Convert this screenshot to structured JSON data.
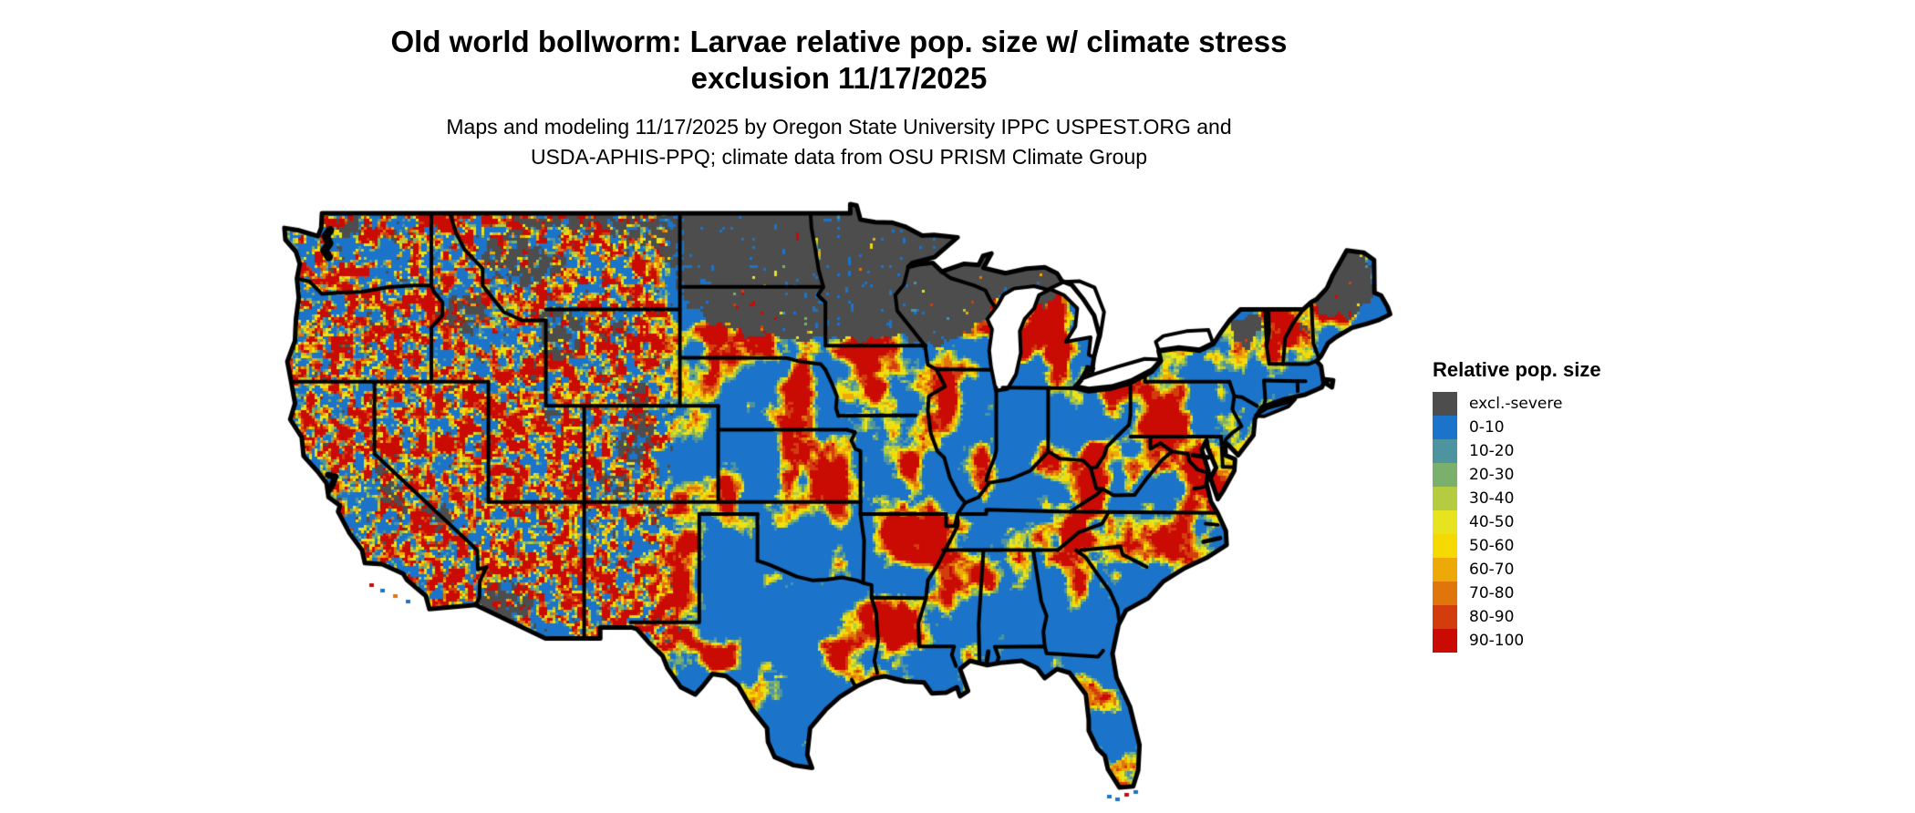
{
  "header": {
    "title_line1": "Old world bollworm: Larvae relative pop. size w/ climate stress",
    "title_line2": "exclusion 11/17/2025",
    "subtitle_line1": "Maps and modeling 11/17/2025 by Oregon State University IPPC USPEST.ORG and",
    "subtitle_line2": "USDA-APHIS-PPQ; climate data from OSU PRISM Climate Group"
  },
  "legend": {
    "title": "Relative pop. size",
    "items": [
      {
        "label": "excl.-severe",
        "color": "#4d4d4d"
      },
      {
        "label": "0-10",
        "color": "#1b74c9"
      },
      {
        "label": "10-20",
        "color": "#4e93a0"
      },
      {
        "label": "20-30",
        "color": "#7ab06c"
      },
      {
        "label": "30-40",
        "color": "#b5cb40"
      },
      {
        "label": "40-50",
        "color": "#e7e41f"
      },
      {
        "label": "50-60",
        "color": "#f4d903"
      },
      {
        "label": "60-70",
        "color": "#eda907"
      },
      {
        "label": "70-80",
        "color": "#e0760b"
      },
      {
        "label": "80-90",
        "color": "#d33d0e"
      },
      {
        "label": "90-100",
        "color": "#c90b04"
      }
    ]
  },
  "chart_data": {
    "type": "heatmap",
    "title": "Old world bollworm: Larvae relative pop. size w/ climate stress exclusion 11/17/2025",
    "legend_title": "Relative pop. size",
    "classes": [
      "excl.-severe",
      "0-10",
      "10-20",
      "20-30",
      "30-40",
      "40-50",
      "50-60",
      "60-70",
      "70-80",
      "80-90",
      "90-100"
    ],
    "colors": [
      "#4d4d4d",
      "#1b74c9",
      "#4e93a0",
      "#7ab06c",
      "#b5cb40",
      "#e7e41f",
      "#f4d903",
      "#eda907",
      "#e0760b",
      "#d33d0e",
      "#c90b04"
    ],
    "region": "Contiguous United States",
    "date": "11/17/2025",
    "legend_position": "right"
  }
}
